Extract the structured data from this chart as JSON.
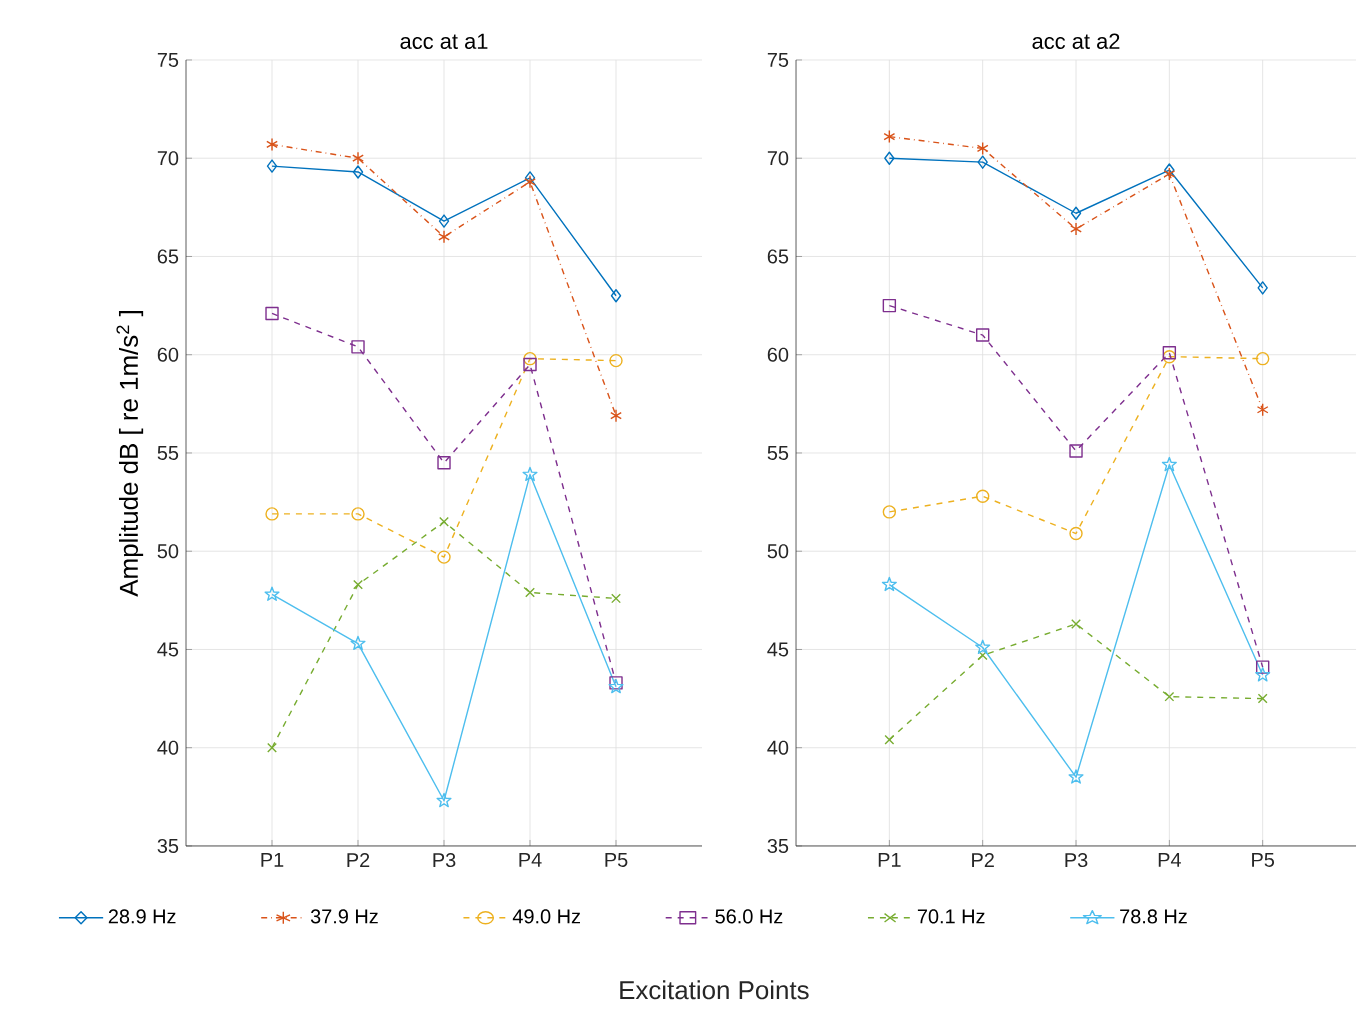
{
  "chart_data": [
    {
      "type": "line",
      "title": "acc at a1",
      "xlabel": "Excitation Points",
      "ylabel": "Amplitude dB [ re 1m/s$^{2}$ ]",
      "categories": [
        "P1",
        "P2",
        "P3",
        "P4",
        "P5"
      ],
      "ylim": [
        35,
        75
      ],
      "yticks": [
        35,
        40,
        45,
        50,
        55,
        60,
        65,
        70,
        75
      ],
      "grid": true,
      "legend": "bottom",
      "series": [
        {
          "name": "28.9 Hz",
          "color": "#0072bd",
          "marker": "diamond",
          "line_style": "solid",
          "values": [
            69.6,
            69.3,
            66.8,
            69.0,
            63.0
          ]
        },
        {
          "name": "37.9 Hz",
          "color": "#d95319",
          "marker": "cross",
          "line_style": "dashdot",
          "values": [
            70.7,
            70.0,
            66.0,
            68.8,
            56.9
          ]
        },
        {
          "name": "49.0 Hz",
          "color": "#edb120",
          "marker": "circle",
          "line_style": "dashed",
          "values": [
            51.9,
            51.9,
            49.7,
            59.8,
            59.7
          ]
        },
        {
          "name": "56.0 Hz",
          "color": "#7e2f8e",
          "marker": "square",
          "line_style": "dashed",
          "values": [
            62.1,
            60.4,
            54.5,
            59.5,
            43.3
          ]
        },
        {
          "name": "70.1 Hz",
          "color": "#77ac30",
          "marker": "cross",
          "line_style": "dashed",
          "values": [
            40.0,
            48.3,
            51.5,
            47.9,
            47.6
          ]
        },
        {
          "name": "78.8 Hz",
          "color": "#4dbeee",
          "marker": "star",
          "line_style": "solid",
          "values": [
            47.8,
            45.3,
            37.3,
            53.9,
            43.1
          ]
        }
      ]
    },
    {
      "type": "line",
      "title": "acc at a2",
      "categories": [
        "P1",
        "P2",
        "P3",
        "P4",
        "P5"
      ],
      "ylim": [
        35,
        75
      ],
      "yticks": [
        35,
        40,
        45,
        50,
        55,
        60,
        65,
        70,
        75
      ],
      "grid": true,
      "series": [
        {
          "color": "#0072bd",
          "marker": "diamond",
          "line_style": "solid",
          "values": [
            70.0,
            69.8,
            67.2,
            69.4,
            63.4
          ]
        },
        {
          "color": "#d95319",
          "marker": "cross",
          "line_style": "dashdot",
          "values": [
            71.1,
            70.5,
            66.4,
            69.2,
            57.2
          ]
        },
        {
          "color": "#edb120",
          "marker": "circle",
          "line_style": "dashed",
          "values": [
            52.0,
            52.8,
            50.9,
            59.9,
            59.8
          ]
        },
        {
          "color": "#7e2f8e",
          "marker": "square",
          "line_style": "dashed",
          "values": [
            62.5,
            61.0,
            55.1,
            60.1,
            44.1
          ]
        },
        {
          "color": "#77ac30",
          "marker": "cross",
          "line_style": "dashed",
          "values": [
            40.4,
            44.7,
            46.3,
            42.6,
            42.5
          ]
        },
        {
          "color": "#4dbeee",
          "marker": "star",
          "line_style": "solid",
          "values": [
            48.3,
            45.1,
            38.5,
            54.4,
            43.7
          ]
        }
      ]
    }
  ]
}
